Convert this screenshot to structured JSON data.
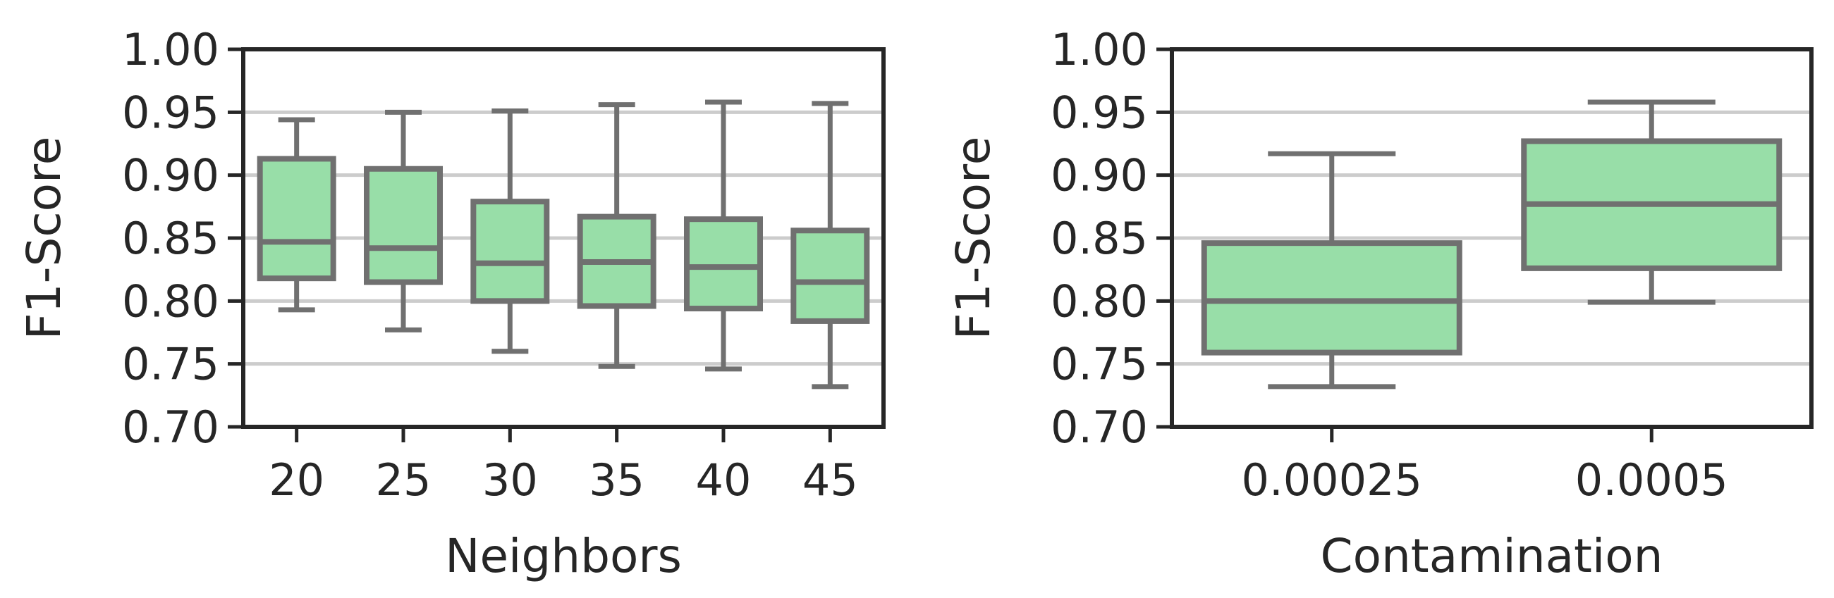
{
  "style": {
    "box_fill": "#98dea8",
    "box_edge": "#707070",
    "axis_color": "#262626",
    "grid_color": "#cccccc"
  },
  "chart_data": [
    {
      "type": "box",
      "xlabel": "Neighbors",
      "ylabel": "F1-Score",
      "ylim": [
        0.7,
        1.0
      ],
      "yticks": [
        "0.70",
        "0.75",
        "0.80",
        "0.85",
        "0.90",
        "0.95",
        "1.00"
      ],
      "grid": "horizontal",
      "categories": [
        "20",
        "25",
        "30",
        "35",
        "40",
        "45"
      ],
      "boxes": [
        {
          "whislo": 0.793,
          "q1": 0.818,
          "med": 0.847,
          "q3": 0.913,
          "whishi": 0.944
        },
        {
          "whislo": 0.777,
          "q1": 0.815,
          "med": 0.842,
          "q3": 0.905,
          "whishi": 0.95
        },
        {
          "whislo": 0.76,
          "q1": 0.8,
          "med": 0.83,
          "q3": 0.879,
          "whishi": 0.951
        },
        {
          "whislo": 0.748,
          "q1": 0.796,
          "med": 0.831,
          "q3": 0.867,
          "whishi": 0.956
        },
        {
          "whislo": 0.746,
          "q1": 0.794,
          "med": 0.827,
          "q3": 0.865,
          "whishi": 0.958
        },
        {
          "whislo": 0.732,
          "q1": 0.784,
          "med": 0.815,
          "q3": 0.856,
          "whishi": 0.957
        }
      ]
    },
    {
      "type": "box",
      "xlabel": "Contamination",
      "ylabel": "F1-Score",
      "ylim": [
        0.7,
        1.0
      ],
      "yticks": [
        "0.70",
        "0.75",
        "0.80",
        "0.85",
        "0.90",
        "0.95",
        "1.00"
      ],
      "grid": "horizontal",
      "categories": [
        "0.00025",
        "0.0005"
      ],
      "boxes": [
        {
          "whislo": 0.732,
          "q1": 0.759,
          "med": 0.8,
          "q3": 0.846,
          "whishi": 0.917
        },
        {
          "whislo": 0.799,
          "q1": 0.826,
          "med": 0.877,
          "q3": 0.927,
          "whishi": 0.958
        }
      ]
    }
  ]
}
